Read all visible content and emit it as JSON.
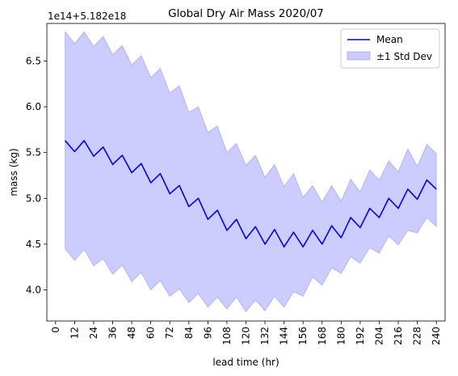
{
  "chart_data": {
    "type": "line",
    "title": "Global Dry Air Mass 2020/07",
    "xlabel": "lead time (hr)",
    "ylabel": "mass (kg)",
    "offset_text": "1e14+5.182e18",
    "x_ticks": [
      0,
      12,
      24,
      36,
      48,
      60,
      72,
      84,
      96,
      108,
      120,
      132,
      144,
      156,
      168,
      180,
      192,
      204,
      216,
      228,
      240
    ],
    "y_ticks": [
      4.0,
      4.5,
      5.0,
      5.5,
      6.0,
      6.5
    ],
    "y_tick_labels": [
      "4.0",
      "4.5",
      "5.0",
      "5.5",
      "6.0",
      "6.5"
    ],
    "xlim": [
      -5.5,
      245.5
    ],
    "ylim": [
      3.66,
      6.91
    ],
    "x": [
      6,
      12,
      18,
      24,
      30,
      36,
      42,
      48,
      54,
      60,
      66,
      72,
      78,
      84,
      90,
      96,
      102,
      108,
      114,
      120,
      126,
      132,
      138,
      144,
      150,
      156,
      162,
      168,
      174,
      180,
      186,
      192,
      198,
      204,
      210,
      216,
      222,
      228,
      234,
      240
    ],
    "series": [
      {
        "name": "Mean",
        "color": "#0000ee",
        "values": [
          5.63,
          5.51,
          5.63,
          5.46,
          5.56,
          5.37,
          5.47,
          5.28,
          5.38,
          5.17,
          5.27,
          5.05,
          5.14,
          4.91,
          5.0,
          4.77,
          4.87,
          4.65,
          4.77,
          4.56,
          4.69,
          4.5,
          4.66,
          4.47,
          4.63,
          4.47,
          4.65,
          4.5,
          4.7,
          4.57,
          4.79,
          4.68,
          4.89,
          4.79,
          5.0,
          4.89,
          5.1,
          4.99,
          5.2,
          5.1
        ]
      },
      {
        "name": "±1 Std Dev",
        "type": "band",
        "color": "#0000ff",
        "upper": [
          6.82,
          6.69,
          6.82,
          6.66,
          6.77,
          6.57,
          6.67,
          6.46,
          6.56,
          6.32,
          6.42,
          6.15,
          6.23,
          5.94,
          6.0,
          5.72,
          5.79,
          5.5,
          5.6,
          5.36,
          5.47,
          5.23,
          5.37,
          5.13,
          5.27,
          5.01,
          5.14,
          4.96,
          5.14,
          4.97,
          5.21,
          5.07,
          5.31,
          5.2,
          5.41,
          5.29,
          5.54,
          5.35,
          5.59,
          5.49
        ],
        "lower": [
          4.45,
          4.32,
          4.44,
          4.26,
          4.34,
          4.17,
          4.27,
          4.09,
          4.19,
          4.0,
          4.1,
          3.93,
          4.01,
          3.86,
          3.96,
          3.81,
          3.92,
          3.79,
          3.92,
          3.76,
          3.89,
          3.77,
          3.93,
          3.81,
          3.98,
          3.93,
          4.14,
          4.05,
          4.24,
          4.18,
          4.36,
          4.29,
          4.46,
          4.4,
          4.59,
          4.49,
          4.65,
          4.62,
          4.79,
          4.69
        ]
      }
    ],
    "legend_position": "upper-right",
    "grid": false
  }
}
